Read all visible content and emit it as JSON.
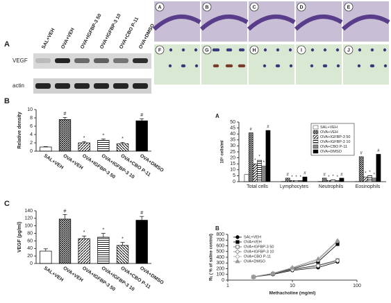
{
  "blot": {
    "panel": "A",
    "lanes": [
      "SAL+VEH",
      "OVA+VEH",
      "OVA+IGFBP-3 50",
      "OVA+IGFBP-3 10",
      "OVA+CBO P-11",
      "OVA+DMSO"
    ],
    "rows": [
      "VEGF",
      "actin"
    ]
  },
  "micrographs": {
    "labels": [
      "A",
      "B",
      "C",
      "D",
      "E",
      "F",
      "G",
      "H",
      "I",
      "J"
    ]
  },
  "chart_data": [
    {
      "type": "bar",
      "panel": "B",
      "y_label": "Relative density",
      "categories": [
        "SAL+VEH",
        "OVA+VEH",
        "OVA+IGFBP-3 50",
        "OVA+IGFBP-3 10",
        "OVA+CBO P-11",
        "OVA+DMSO"
      ],
      "values": [
        1,
        7.6,
        2.0,
        2.6,
        1.8,
        7.3
      ],
      "errors": [
        0.1,
        0.5,
        0.3,
        0.3,
        0.3,
        0.5
      ],
      "annotations": [
        null,
        "#",
        "*",
        "*",
        "*",
        "#"
      ],
      "patterns": [
        "none",
        "cross",
        "diag",
        "hline",
        "diag2",
        "solid"
      ],
      "color": "#000000",
      "ylim": [
        0,
        10
      ],
      "yticks": [
        0,
        2,
        4,
        6,
        8,
        10
      ]
    },
    {
      "type": "bar",
      "panel": "C",
      "y_label": "VEGF (pg/ml)",
      "categories": [
        "SAL+VEH",
        "OVA+VEH",
        "OVA+IGFBP-3 50",
        "OVA+IGFBP-3 10",
        "OVA+CBO P-11",
        "OVA+DMSO"
      ],
      "values": [
        33,
        118,
        66,
        70,
        48,
        115
      ],
      "errors": [
        6,
        12,
        7,
        10,
        8,
        10
      ],
      "annotations": [
        null,
        "#",
        "*",
        "*",
        "*",
        "#"
      ],
      "patterns": [
        "none",
        "cross",
        "diag",
        "hline",
        "diag2",
        "solid"
      ],
      "color": "#000000",
      "ylim": [
        0,
        140
      ],
      "yticks": [
        0,
        20,
        40,
        60,
        80,
        100,
        120,
        140
      ]
    },
    {
      "type": "grouped_bar",
      "panel": "A",
      "y_label": "10⁵ cells/ml",
      "categories": [
        "Total cells",
        "Lymphocytes",
        "Neutrophils",
        "Eosinophils"
      ],
      "series": [
        {
          "name": "SAL+VEH",
          "pattern": "none",
          "values": [
            6,
            0.2,
            0.2,
            0.1
          ]
        },
        {
          "name": "OVA+VEH",
          "pattern": "cross",
          "annotation": "#",
          "values": [
            41,
            3,
            3,
            21
          ]
        },
        {
          "name": "OVA+IGFBP-3 50",
          "pattern": "diag",
          "annotation": "*",
          "values": [
            15,
            1,
            1,
            4
          ]
        },
        {
          "name": "OVA+IGFBP-3 10",
          "pattern": "hline",
          "annotation": "*",
          "values": [
            18,
            1,
            1.5,
            5
          ]
        },
        {
          "name": "OVA+CBO P-11",
          "pattern": "gray",
          "annotation": "*",
          "values": [
            13,
            1,
            1,
            3
          ]
        },
        {
          "name": "OVA+DMSO",
          "pattern": "solid",
          "annotation": "#",
          "values": [
            43,
            4,
            3,
            23
          ]
        }
      ],
      "color": "#000000",
      "ylim": [
        0,
        50
      ],
      "yticks": [
        0,
        5,
        10,
        15,
        20,
        25,
        30,
        35,
        40,
        45,
        50
      ]
    },
    {
      "type": "line",
      "panel": "B",
      "x_label": "Methacholine (mg/ml)",
      "y_label": "Rʟ ( % of saline control)",
      "x": [
        2.5,
        5,
        10,
        25,
        50
      ],
      "log_x": true,
      "series": [
        {
          "name": "SAL+VEH",
          "marker": "circle",
          "filled": true,
          "color": "#000000",
          "values": [
            55,
            100,
            170,
            220,
            320
          ]
        },
        {
          "name": "OVA+VEH",
          "marker": "square",
          "filled": true,
          "color": "#000000",
          "values": [
            55,
            110,
            200,
            320,
            630
          ]
        },
        {
          "name": "OVA+IGFBP-3 50",
          "marker": "square",
          "filled": false,
          "color": "#555555",
          "values": [
            55,
            110,
            190,
            260,
            350
          ]
        },
        {
          "name": "OVA+IGFBP-3 10",
          "marker": "diamond",
          "filled": false,
          "color": "#777777",
          "values": [
            55,
            110,
            180,
            250,
            340
          ]
        },
        {
          "name": "OVA+CBO P-11",
          "marker": "circle",
          "filled": false,
          "color": "#999999",
          "values": [
            60,
            120,
            210,
            350,
            680
          ]
        },
        {
          "name": "OVA+DMSO",
          "marker": "triangle",
          "filled": true,
          "color": "#999999",
          "values": [
            60,
            120,
            220,
            370,
            690
          ]
        }
      ],
      "xlim": [
        1,
        100
      ],
      "xticks": [
        1,
        10,
        100
      ],
      "ylim": [
        0,
        800
      ],
      "yticks": [
        0,
        100,
        200,
        300,
        400,
        500,
        600,
        700,
        800
      ]
    }
  ]
}
